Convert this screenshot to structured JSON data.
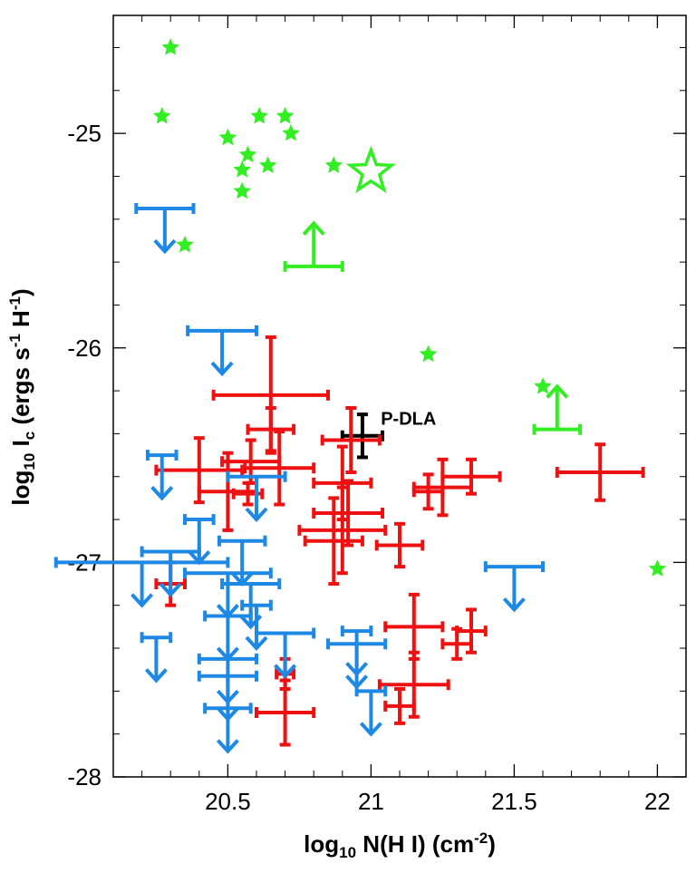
{
  "chart_data": {
    "type": "scatter",
    "title": "",
    "xlabel": {
      "prefix": "log",
      "sub": "10",
      "main": " N(H I) (cm",
      "sup": "-2",
      "suffix": ")"
    },
    "ylabel": {
      "prefix": "log",
      "sub": "10",
      "main": " I",
      "sub2": "c",
      "mid": " (ergs s",
      "sup1": "-1",
      "mid2": " H",
      "sup2": "-1",
      "suffix": ")"
    },
    "xlim": [
      20.1,
      22.1
    ],
    "ylim": [
      -28,
      -24.45
    ],
    "xticks": [
      20.5,
      21,
      21.5,
      22
    ],
    "xtick_labels": [
      "20.5",
      "21",
      "21.5",
      "22"
    ],
    "yticks": [
      -25,
      -26,
      -27,
      -28
    ],
    "ytick_labels": [
      "-25",
      "-26",
      "-27",
      "-28"
    ],
    "colors": {
      "stars": "#33ee22",
      "red": "#ee1111",
      "blue": "#1e88e5",
      "black": "#000000"
    },
    "annotation": {
      "text": "P-DLA",
      "x": 21.05,
      "y": -26.35
    },
    "series": [
      {
        "name": "green stars",
        "marker": "filled-star",
        "points": [
          [
            20.3,
            -24.6
          ],
          [
            20.27,
            -24.92
          ],
          [
            20.5,
            -25.02
          ],
          [
            20.61,
            -24.92
          ],
          [
            20.7,
            -24.92
          ],
          [
            20.72,
            -25.0
          ],
          [
            20.57,
            -25.1
          ],
          [
            20.55,
            -25.17
          ],
          [
            20.64,
            -25.15
          ],
          [
            20.55,
            -25.27
          ],
          [
            20.87,
            -25.15
          ],
          [
            20.35,
            -25.52
          ],
          [
            21.2,
            -26.03
          ],
          [
            21.6,
            -26.18
          ],
          [
            22.0,
            -27.03
          ]
        ]
      },
      {
        "name": "green open star",
        "marker": "open-star",
        "points": [
          [
            21.0,
            -25.18
          ]
        ]
      },
      {
        "name": "green lower limits",
        "marker": "lower-limit",
        "points": [
          {
            "x": 20.8,
            "y": -25.62,
            "xerr": 0.1,
            "arrow_to": -25.42
          },
          {
            "x": 21.65,
            "y": -26.38,
            "xerr": 0.08,
            "arrow_to": -26.18
          }
        ]
      },
      {
        "name": "black P-DLA",
        "marker": "errorbar",
        "points": [
          {
            "x": 20.97,
            "y": -26.41,
            "xerr": 0.07,
            "yerr": 0.1
          }
        ]
      },
      {
        "name": "red detections",
        "marker": "errorbar",
        "points": [
          {
            "x": 20.65,
            "y": -26.22,
            "xerr": 0.2,
            "yerr": 0.27
          },
          {
            "x": 20.65,
            "y": -26.38,
            "xerr": 0.08,
            "yerr": 0.1
          },
          {
            "x": 20.58,
            "y": -26.53,
            "xerr": 0.1,
            "yerr": 0.1
          },
          {
            "x": 20.68,
            "y": -26.56,
            "xerr": 0.12,
            "yerr": 0.17
          },
          {
            "x": 20.4,
            "y": -26.57,
            "xerr": 0.15,
            "yerr": 0.15
          },
          {
            "x": 20.5,
            "y": -26.67,
            "xerr": 0.1,
            "yerr": 0.18
          },
          {
            "x": 20.57,
            "y": -26.68,
            "xerr": 0.05,
            "yerr": 0.05
          },
          {
            "x": 20.93,
            "y": -26.43,
            "xerr": 0.1,
            "yerr": 0.15
          },
          {
            "x": 20.9,
            "y": -26.63,
            "xerr": 0.1,
            "yerr": 0.17
          },
          {
            "x": 20.9,
            "y": -26.85,
            "xerr": 0.15,
            "yerr": 0.2
          },
          {
            "x": 20.92,
            "y": -26.77,
            "xerr": 0.12,
            "yerr": 0.15
          },
          {
            "x": 20.87,
            "y": -26.9,
            "xerr": 0.1,
            "yerr": 0.2
          },
          {
            "x": 21.2,
            "y": -26.67,
            "xerr": 0.05,
            "yerr": 0.08
          },
          {
            "x": 21.25,
            "y": -26.65,
            "xerr": 0.1,
            "yerr": 0.13
          },
          {
            "x": 21.35,
            "y": -26.6,
            "xerr": 0.1,
            "yerr": 0.08
          },
          {
            "x": 21.8,
            "y": -26.58,
            "xerr": 0.15,
            "yerr": 0.13
          },
          {
            "x": 21.1,
            "y": -26.92,
            "xerr": 0.08,
            "yerr": 0.1
          },
          {
            "x": 20.3,
            "y": -27.1,
            "xerr": 0.05,
            "yerr": 0.1
          },
          {
            "x": 20.7,
            "y": -27.52,
            "xerr": 0.03,
            "yerr": 0.07
          },
          {
            "x": 20.7,
            "y": -27.7,
            "xerr": 0.1,
            "yerr": 0.15
          },
          {
            "x": 21.15,
            "y": -27.3,
            "xerr": 0.1,
            "yerr": 0.15
          },
          {
            "x": 21.15,
            "y": -27.57,
            "xerr": 0.12,
            "yerr": 0.15
          },
          {
            "x": 21.1,
            "y": -27.67,
            "xerr": 0.05,
            "yerr": 0.08
          },
          {
            "x": 21.35,
            "y": -27.32,
            "xerr": 0.05,
            "yerr": 0.1
          },
          {
            "x": 21.3,
            "y": -27.38,
            "xerr": 0.05,
            "yerr": 0.07
          }
        ]
      },
      {
        "name": "blue upper limits",
        "marker": "upper-limit",
        "points": [
          {
            "x": 20.28,
            "y": -25.35,
            "xerr": 0.1,
            "arrow_to": -25.55
          },
          {
            "x": 20.48,
            "y": -25.92,
            "xerr": 0.12,
            "arrow_to": -26.12
          },
          {
            "x": 20.27,
            "y": -26.5,
            "xerr": 0.05,
            "arrow_to": -26.7
          },
          {
            "x": 20.6,
            "y": -26.6,
            "xerr": 0.1,
            "arrow_to": -26.8
          },
          {
            "x": 20.4,
            "y": -26.8,
            "xerr": 0.05,
            "arrow_to": -27.0
          },
          {
            "x": 20.2,
            "y": -27.0,
            "xerr": 0.3,
            "arrow_to": -27.2
          },
          {
            "x": 20.3,
            "y": -26.95,
            "xerr": 0.1,
            "arrow_to": -27.15
          },
          {
            "x": 20.55,
            "y": -26.9,
            "xerr": 0.08,
            "arrow_to": -27.1
          },
          {
            "x": 20.5,
            "y": -27.05,
            "xerr": 0.15,
            "arrow_to": -27.25
          },
          {
            "x": 20.58,
            "y": -27.1,
            "xerr": 0.1,
            "arrow_to": -27.3
          },
          {
            "x": 20.5,
            "y": -27.25,
            "xerr": 0.08,
            "arrow_to": -27.45
          },
          {
            "x": 20.6,
            "y": -27.2,
            "xerr": 0.05,
            "arrow_to": -27.4
          },
          {
            "x": 20.7,
            "y": -27.33,
            "xerr": 0.1,
            "arrow_to": -27.53
          },
          {
            "x": 20.25,
            "y": -27.35,
            "xerr": 0.05,
            "arrow_to": -27.55
          },
          {
            "x": 20.5,
            "y": -27.45,
            "xerr": 0.1,
            "arrow_to": -27.65
          },
          {
            "x": 20.5,
            "y": -27.53,
            "xerr": 0.1,
            "arrow_to": -27.73
          },
          {
            "x": 20.5,
            "y": -27.68,
            "xerr": 0.08,
            "arrow_to": -27.88
          },
          {
            "x": 20.95,
            "y": -27.32,
            "xerr": 0.05,
            "arrow_to": -27.52
          },
          {
            "x": 20.95,
            "y": -27.38,
            "xerr": 0.1,
            "arrow_to": -27.58
          },
          {
            "x": 21.0,
            "y": -27.6,
            "xerr": 0.05,
            "arrow_to": -27.8
          },
          {
            "x": 21.5,
            "y": -27.02,
            "xerr": 0.1,
            "arrow_to": -27.22
          }
        ]
      }
    ]
  }
}
